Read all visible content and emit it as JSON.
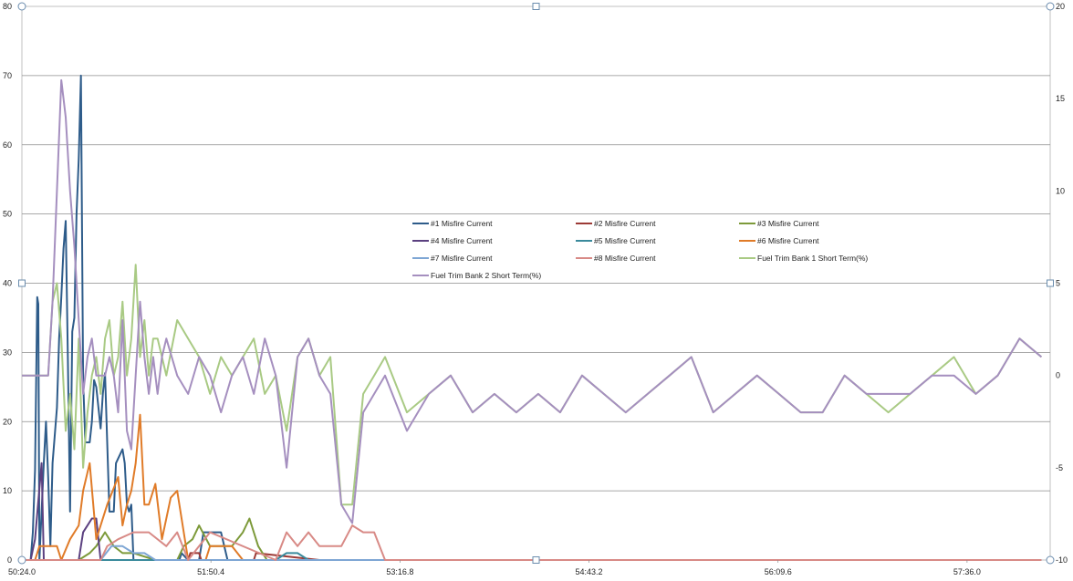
{
  "chart_data": {
    "type": "line",
    "x_tick_labels": [
      "50:24.0",
      "51:50.4",
      "53:16.8",
      "54:43.2",
      "56:09.6",
      "57:36.0"
    ],
    "x_tick_seconds": [
      3024,
      3110.4,
      3196.8,
      3283.2,
      3369.6,
      3456
    ],
    "xlim_seconds": [
      3024,
      3494
    ],
    "y_left": {
      "ticks": [
        0,
        10,
        20,
        30,
        40,
        50,
        60,
        70,
        80
      ],
      "ylim": [
        0,
        80
      ]
    },
    "y_right": {
      "ticks": [
        -10,
        -5,
        0,
        5,
        10,
        15,
        20
      ],
      "ylim": [
        -10,
        20
      ]
    },
    "grid": "horizontal",
    "legend_position": "center",
    "series": [
      {
        "name": "#1 Misfire Current",
        "color": "#2e5c8a",
        "axis": "left",
        "x": [
          3028,
          3029,
          3030,
          3031,
          3031.5,
          3032,
          3034,
          3035,
          3036,
          3037,
          3038,
          3040,
          3041,
          3042,
          3043,
          3044,
          3045,
          3046,
          3047,
          3048,
          3049,
          3050,
          3051,
          3052,
          3053,
          3054,
          3055,
          3056,
          3057,
          3058,
          3060,
          3061,
          3062,
          3063,
          3064,
          3066,
          3067,
          3070,
          3071,
          3072,
          3073,
          3074,
          3075,
          3076,
          3077,
          3078,
          3079,
          3080,
          3081,
          3082,
          3083,
          3084,
          3085,
          3088,
          3089,
          3090,
          3091,
          3092,
          3093,
          3094,
          3095,
          3096,
          3097,
          3100,
          3102,
          3105,
          3107,
          3110,
          3112,
          3115,
          3118
        ],
        "y": [
          0,
          4,
          13,
          38,
          37,
          0,
          14,
          20,
          12,
          2,
          14,
          22,
          32,
          38,
          45,
          49,
          29,
          7,
          33,
          35,
          50,
          58,
          70,
          26,
          17,
          17,
          17,
          20,
          26,
          25,
          19,
          24,
          27,
          17,
          7,
          7,
          14,
          16,
          14,
          8,
          7,
          8,
          0,
          0,
          0,
          0,
          0,
          0,
          0,
          0,
          0,
          0,
          0,
          0,
          0,
          0,
          0,
          0,
          0,
          0,
          0,
          0,
          1,
          0,
          0,
          0,
          4,
          4,
          4,
          4,
          0
        ]
      },
      {
        "name": "#2 Misfire Current",
        "color": "#9c3a36",
        "axis": "left",
        "x": [
          3024,
          3100,
          3101,
          3105,
          3106,
          3130,
          3131,
          3160,
          3161,
          3490
        ],
        "y": [
          0,
          0,
          1,
          1,
          0,
          0,
          1,
          0,
          0,
          0
        ]
      },
      {
        "name": "#3 Misfire Current",
        "color": "#7d9a3a",
        "axis": "left",
        "x": [
          3024,
          3050,
          3055,
          3058,
          3062,
          3066,
          3070,
          3075,
          3085,
          3095,
          3098,
          3102,
          3105,
          3110,
          3120,
          3125,
          3128,
          3132,
          3136,
          3140,
          3490
        ],
        "y": [
          0,
          0,
          1,
          2,
          4,
          2,
          1,
          1,
          0,
          0,
          2,
          3,
          5,
          2,
          2,
          4,
          6,
          2,
          0,
          0,
          0
        ]
      },
      {
        "name": "#4 Misfire Current",
        "color": "#5b4080",
        "axis": "left",
        "x": [
          3024,
          3028,
          3030,
          3033,
          3034,
          3035,
          3036,
          3050,
          3052,
          3054,
          3056,
          3058,
          3060,
          3490
        ],
        "y": [
          0,
          0,
          3,
          14,
          0,
          0,
          0,
          0,
          4,
          5,
          6,
          6,
          0,
          0
        ]
      },
      {
        "name": "#5 Misfire Current",
        "color": "#3a8a9c",
        "axis": "left",
        "x": [
          3024,
          3140,
          3145,
          3150,
          3155,
          3490
        ],
        "y": [
          0,
          0,
          1,
          1,
          0,
          0
        ]
      },
      {
        "name": "#6 Misfire Current",
        "color": "#e07b28",
        "axis": "left",
        "x": [
          3024,
          3030,
          3032,
          3040,
          3042,
          3046,
          3050,
          3052,
          3055,
          3058,
          3060,
          3063,
          3068,
          3070,
          3072,
          3074,
          3076,
          3078,
          3080,
          3082,
          3085,
          3088,
          3092,
          3095,
          3100,
          3108,
          3110,
          3120,
          3125,
          3490
        ],
        "y": [
          0,
          0,
          2,
          2,
          0,
          3,
          5,
          10,
          14,
          3,
          5,
          8,
          12,
          5,
          8,
          10,
          14,
          21,
          8,
          8,
          11,
          3,
          9,
          10,
          0,
          0,
          2,
          2,
          0,
          0
        ]
      },
      {
        "name": "#7 Misfire Current",
        "color": "#7ea6d4",
        "axis": "left",
        "x": [
          3024,
          3060,
          3065,
          3070,
          3075,
          3080,
          3085,
          3490
        ],
        "y": [
          0,
          0,
          2,
          2,
          1,
          1,
          0,
          0
        ]
      },
      {
        "name": "#8 Misfire Current",
        "color": "#d88a86",
        "axis": "left",
        "x": [
          3024,
          3060,
          3063,
          3068,
          3075,
          3082,
          3090,
          3095,
          3100,
          3105,
          3110,
          3140,
          3145,
          3150,
          3155,
          3160,
          3165,
          3170,
          3175,
          3180,
          3185,
          3190,
          3200,
          3490
        ],
        "y": [
          0,
          0,
          2,
          3,
          4,
          4,
          2,
          4,
          0,
          2,
          4,
          0,
          4,
          2,
          4,
          2,
          2,
          2,
          5,
          4,
          4,
          0,
          0,
          0
        ]
      },
      {
        "name": "Fuel Trim Bank 1 Short Term(%)",
        "color": "#a9ca84",
        "axis": "right",
        "x": [
          3024,
          3036,
          3038,
          3040,
          3042,
          3044,
          3046,
          3048,
          3050,
          3052,
          3054,
          3056,
          3058,
          3060,
          3062,
          3064,
          3066,
          3068,
          3070,
          3072,
          3074,
          3076,
          3078,
          3080,
          3082,
          3084,
          3086,
          3088,
          3090,
          3095,
          3100,
          3105,
          3110,
          3115,
          3120,
          3125,
          3130,
          3135,
          3140,
          3145,
          3150,
          3155,
          3160,
          3165,
          3170,
          3175,
          3180,
          3185,
          3190,
          3200,
          3210,
          3220,
          3230,
          3240,
          3250,
          3260,
          3270,
          3280,
          3290,
          3300,
          3310,
          3320,
          3330,
          3340,
          3350,
          3360,
          3370,
          3380,
          3390,
          3400,
          3410,
          3420,
          3430,
          3440,
          3450,
          3460,
          3470,
          3480,
          3490
        ],
        "y": [
          0,
          0,
          4,
          5,
          2,
          -3,
          -1,
          -4,
          2,
          -5,
          -2,
          0,
          1,
          -1,
          2,
          3,
          0,
          1,
          4,
          0,
          2,
          6,
          1,
          3,
          0,
          2,
          2,
          1,
          0,
          3,
          2,
          1,
          -1,
          1,
          0,
          1,
          2,
          -1,
          0,
          -3,
          1,
          2,
          0,
          1,
          -7,
          -7,
          -1,
          0,
          1,
          -2,
          -1,
          0,
          -2,
          -1,
          -2,
          -1,
          -2,
          0,
          -1,
          -2,
          -1,
          0,
          1,
          -2,
          -1,
          0,
          -1,
          -2,
          -2,
          0,
          -1,
          -2,
          -1,
          0,
          1,
          -1,
          0,
          2,
          1
        ]
      },
      {
        "name": "Fuel Trim Bank 2 Short Term(%)",
        "color": "#a58fbf",
        "axis": "right",
        "x": [
          3024,
          3036,
          3038,
          3040,
          3042,
          3044,
          3046,
          3048,
          3050,
          3052,
          3054,
          3056,
          3058,
          3060,
          3062,
          3064,
          3066,
          3068,
          3070,
          3072,
          3074,
          3076,
          3078,
          3080,
          3082,
          3084,
          3086,
          3088,
          3090,
          3095,
          3100,
          3105,
          3110,
          3115,
          3120,
          3125,
          3130,
          3135,
          3140,
          3145,
          3150,
          3155,
          3160,
          3165,
          3170,
          3175,
          3180,
          3185,
          3190,
          3200,
          3210,
          3220,
          3230,
          3240,
          3250,
          3260,
          3270,
          3280,
          3290,
          3300,
          3310,
          3320,
          3330,
          3340,
          3350,
          3360,
          3370,
          3380,
          3390,
          3400,
          3410,
          3420,
          3430,
          3440,
          3450,
          3460,
          3470,
          3480,
          3490
        ],
        "y": [
          0,
          0,
          4,
          10,
          16,
          14,
          10,
          7,
          3,
          -1,
          1,
          2,
          0,
          0,
          0,
          1,
          0,
          -2,
          3,
          -3,
          -4,
          0,
          4,
          1,
          -1,
          1,
          -1,
          1,
          2,
          0,
          -1,
          1,
          0,
          -2,
          0,
          1,
          -1,
          2,
          0,
          -5,
          1,
          2,
          0,
          -1,
          -7,
          -8,
          -2,
          -1,
          0,
          -3,
          -1,
          0,
          -2,
          -1,
          -2,
          -1,
          -2,
          0,
          -1,
          -2,
          -1,
          0,
          1,
          -2,
          -1,
          0,
          -1,
          -2,
          -2,
          0,
          -1,
          -1,
          -1,
          0,
          0,
          -1,
          0,
          2,
          1
        ]
      }
    ]
  }
}
